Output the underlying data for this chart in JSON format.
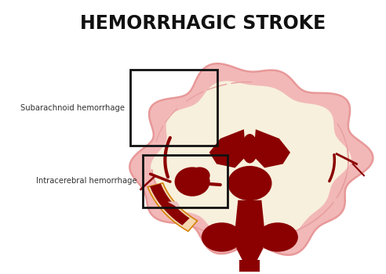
{
  "title": "HEMORRHAGIC STROKE",
  "title_fontsize": 17,
  "title_fontweight": "bold",
  "label_subarachnoid": "Subarachnoid hemorrhage",
  "label_intracerebral": "Intracerebral hemorrhage",
  "label_fontsize": 7.2,
  "bg_color": "#ffffff",
  "brain_outer_color": "#f2b8b8",
  "brain_inner_color": "#f7f0dc",
  "brain_edge_color": "#e89898",
  "dark_red": "#8b0000",
  "medium_red": "#a00000",
  "box_color": "#111111",
  "orange_color": "#d4820a",
  "cream_orange": "#f5d8b0",
  "fold_color": "#e8a0a0"
}
